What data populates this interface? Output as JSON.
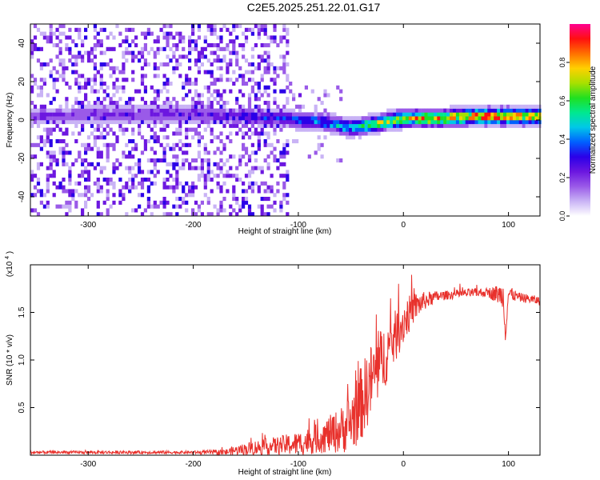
{
  "title": "C2E5.2025.251.22.01.G17",
  "colors": {
    "snr_line": "#e8312c",
    "axis": "#000000",
    "background": "#ffffff",
    "colormap": [
      "#ffffff",
      "#c9b3f5",
      "#9a5ae8",
      "#6c17e0",
      "#2b00e8",
      "#0060ff",
      "#00c8e8",
      "#00e890",
      "#20e020",
      "#a8e000",
      "#ffd000",
      "#ff7000",
      "#ff1010",
      "#ff0090"
    ]
  },
  "chart_data": [
    {
      "type": "heatmap",
      "title": "C2E5.2025.251.22.01.G17",
      "xlabel": "Height of straight line (km)",
      "ylabel": "Frequency (Hz)",
      "xlim": [
        -355,
        130
      ],
      "ylim": [
        -50,
        50
      ],
      "xticks": [
        -300,
        -200,
        -100,
        0,
        100
      ],
      "xtick_labels": [
        "-300",
        "-200",
        "-100",
        "0",
        "100"
      ],
      "yticks": [
        -40,
        -20,
        0,
        20,
        40
      ],
      "ytick_labels": [
        "-40",
        "-20",
        "0",
        "20",
        "40"
      ],
      "colorbar": {
        "label": "Normalized spectral amplitude",
        "range": [
          0,
          1
        ],
        "ticks": [
          0.0,
          0.2,
          0.4,
          0.6,
          0.8
        ],
        "tick_labels": [
          "0.0",
          "0.2",
          "0.4",
          "0.6",
          "0.8"
        ]
      },
      "ridge": {
        "x": [
          -355,
          -300,
          -250,
          -200,
          -170,
          -150,
          -120,
          -100,
          -80,
          -70,
          -60,
          -50,
          -40,
          -30,
          -20,
          -10,
          0,
          20,
          40,
          60,
          80,
          100,
          130
        ],
        "freq": [
          2,
          3,
          3,
          3,
          2,
          2,
          1,
          0,
          -1,
          -2,
          -3,
          -4,
          -3,
          -2,
          -1,
          0,
          1,
          1,
          1,
          2,
          2,
          2,
          2
        ],
        "amplitude": [
          0.2,
          0.2,
          0.2,
          0.22,
          0.25,
          0.28,
          0.3,
          0.35,
          0.4,
          0.42,
          0.45,
          0.5,
          0.55,
          0.6,
          0.65,
          0.7,
          0.72,
          0.75,
          0.75,
          0.78,
          0.85,
          0.8,
          0.72
        ]
      },
      "noise_extent": {
        "freq_spread": 50,
        "until_x": -110
      }
    },
    {
      "type": "line",
      "xlabel": "Height of straight line (km)",
      "ylabel": "SNR (10 * v/v)",
      "scale_label": "(x10",
      "scale_exponent": "4",
      "scale_close": ")",
      "xlim": [
        -355,
        130
      ],
      "ylim": [
        0,
        2.0
      ],
      "xticks": [
        -300,
        -200,
        -100,
        0,
        100
      ],
      "xtick_labels": [
        "-300",
        "-200",
        "-100",
        "0",
        "100"
      ],
      "yticks": [
        0.5,
        1.0,
        1.5
      ],
      "ytick_labels": [
        "0.5",
        "1.0",
        "1.5"
      ],
      "series": [
        {
          "name": "SNR",
          "x": [
            -355,
            -300,
            -250,
            -200,
            -170,
            -160,
            -140,
            -120,
            -100,
            -80,
            -60,
            -50,
            -40,
            -30,
            -20,
            -10,
            0,
            10,
            20,
            30,
            40,
            60,
            80,
            95,
            97,
            100,
            110,
            130
          ],
          "mean": [
            0.03,
            0.03,
            0.03,
            0.03,
            0.03,
            0.05,
            0.08,
            0.1,
            0.12,
            0.18,
            0.26,
            0.35,
            0.55,
            0.8,
            1.0,
            1.2,
            1.4,
            1.55,
            1.62,
            1.66,
            1.68,
            1.7,
            1.71,
            1.68,
            1.3,
            1.7,
            1.66,
            1.62
          ],
          "noise": [
            0.01,
            0.01,
            0.01,
            0.01,
            0.02,
            0.03,
            0.05,
            0.06,
            0.08,
            0.1,
            0.15,
            0.2,
            0.25,
            0.25,
            0.22,
            0.18,
            0.15,
            0.1,
            0.06,
            0.04,
            0.03,
            0.03,
            0.03,
            0.08,
            0.08,
            0.05,
            0.03,
            0.03
          ]
        }
      ]
    }
  ]
}
